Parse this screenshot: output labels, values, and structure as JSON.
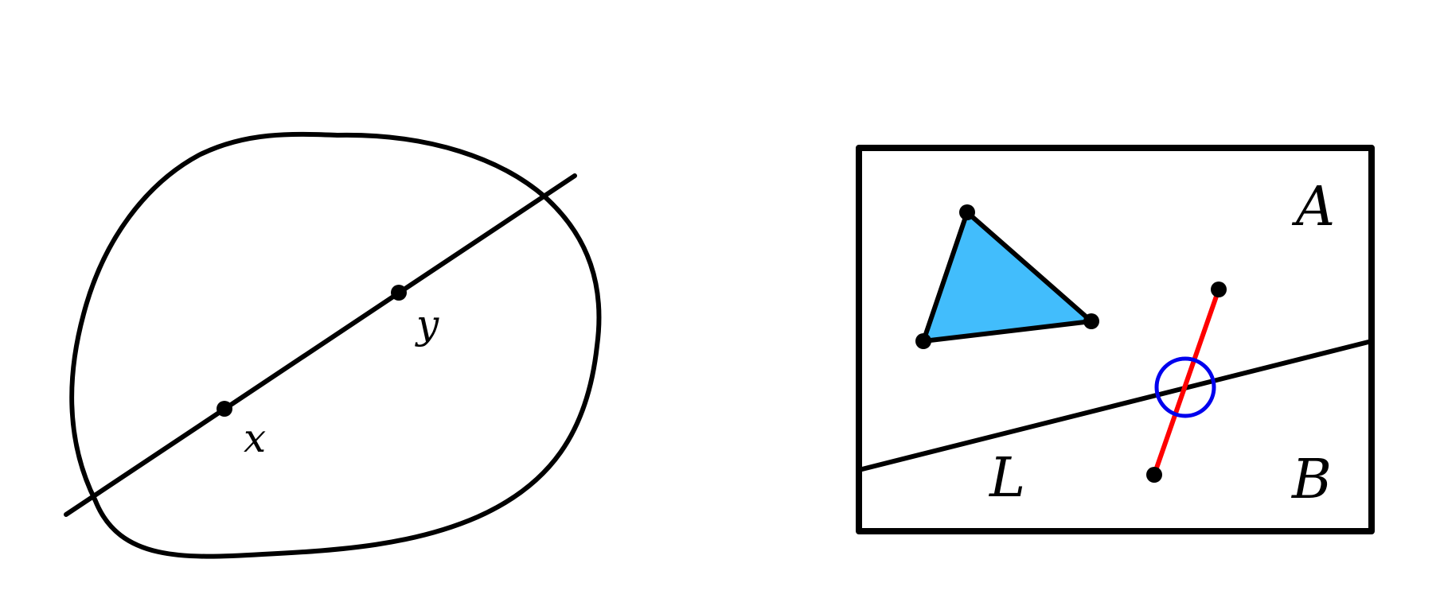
{
  "colors": {
    "stroke": "#000000",
    "triangle_fill": "#42bdfc",
    "segment": "#ff0000",
    "intersection_marker": "#0000ee",
    "background": "#ffffff"
  },
  "left_figure": {
    "point_x_label": "x",
    "point_y_label": "y"
  },
  "right_figure": {
    "region_a_label": "A",
    "region_b_label": "B",
    "line_label": "L"
  }
}
